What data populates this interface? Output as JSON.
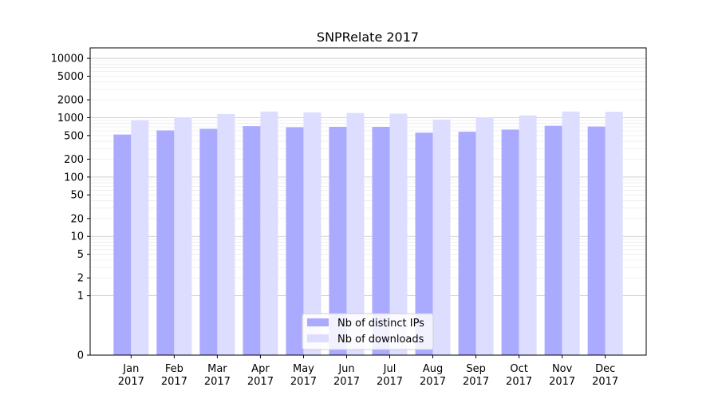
{
  "chart_data": {
    "type": "bar",
    "title": "SNPRelate 2017",
    "xlabel": "",
    "ylabel": "",
    "scale": "symlog",
    "ylim": [
      0,
      15000
    ],
    "y_ticks": [
      "0",
      "1",
      "2",
      "5",
      "10",
      "20",
      "50",
      "100",
      "200",
      "500",
      "1000",
      "2000",
      "5000",
      "10000"
    ],
    "categories": [
      [
        "Jan",
        "2017"
      ],
      [
        "Feb",
        "2017"
      ],
      [
        "Mar",
        "2017"
      ],
      [
        "Apr",
        "2017"
      ],
      [
        "May",
        "2017"
      ],
      [
        "Jun",
        "2017"
      ],
      [
        "Jul",
        "2017"
      ],
      [
        "Aug",
        "2017"
      ],
      [
        "Sep",
        "2017"
      ],
      [
        "Oct",
        "2017"
      ],
      [
        "Nov",
        "2017"
      ],
      [
        "Dec",
        "2017"
      ]
    ],
    "series": [
      {
        "name": "Nb of distinct IPs",
        "color": "#aaaaff",
        "values": [
          520,
          610,
          650,
          720,
          690,
          700,
          700,
          560,
          580,
          630,
          730,
          710
        ]
      },
      {
        "name": "Nb of downloads",
        "color": "#ddddff",
        "values": [
          910,
          1010,
          1150,
          1270,
          1230,
          1200,
          1170,
          930,
          1010,
          1090,
          1270,
          1260
        ]
      }
    ],
    "grid": true,
    "legend_position": "lower-center"
  }
}
